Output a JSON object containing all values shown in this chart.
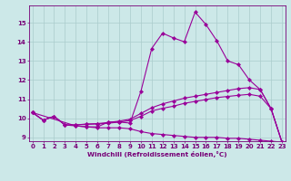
{
  "xlabel": "Windchill (Refroidissement éolien,°C)",
  "x": [
    0,
    1,
    2,
    3,
    4,
    5,
    6,
    7,
    8,
    9,
    10,
    11,
    12,
    13,
    14,
    15,
    16,
    17,
    18,
    19,
    20,
    21,
    22,
    23
  ],
  "line1": [
    10.3,
    9.9,
    10.1,
    9.65,
    9.6,
    9.55,
    9.55,
    9.8,
    9.8,
    9.75,
    11.4,
    13.65,
    14.45,
    14.2,
    14.0,
    15.55,
    14.9,
    14.05,
    13.0,
    12.8,
    12.0,
    11.5,
    10.5,
    8.75
  ],
  "line2": [
    10.3,
    9.9,
    10.1,
    9.65,
    9.65,
    9.7,
    9.72,
    9.78,
    9.85,
    9.95,
    10.25,
    10.55,
    10.75,
    10.9,
    11.05,
    11.15,
    11.25,
    11.35,
    11.45,
    11.55,
    11.6,
    11.5,
    10.5,
    8.75
  ],
  "line3": [
    10.3,
    9.9,
    10.1,
    9.65,
    9.65,
    9.68,
    9.7,
    9.74,
    9.8,
    9.88,
    10.1,
    10.38,
    10.52,
    10.63,
    10.78,
    10.88,
    10.98,
    11.08,
    11.14,
    11.2,
    11.25,
    11.15,
    10.5,
    8.75
  ],
  "line4_x": [
    0,
    4,
    5,
    6,
    7,
    8,
    9,
    10,
    11,
    12,
    13,
    14,
    15,
    16,
    17,
    18,
    19,
    20,
    21,
    22,
    23
  ],
  "line4_y": [
    10.3,
    9.6,
    9.55,
    9.5,
    9.5,
    9.5,
    9.45,
    9.3,
    9.2,
    9.15,
    9.1,
    9.05,
    9.0,
    9.0,
    9.0,
    8.95,
    8.95,
    8.9,
    8.85,
    8.8,
    8.75
  ],
  "bg_color": "#cce8e8",
  "grid_color": "#aacccc",
  "line_color": "#990099",
  "ylim": [
    8.8,
    15.9
  ],
  "xlim": [
    -0.3,
    23.3
  ],
  "yticks": [
    9,
    10,
    11,
    12,
    13,
    14,
    15
  ],
  "xticks": [
    0,
    1,
    2,
    3,
    4,
    5,
    6,
    7,
    8,
    9,
    10,
    11,
    12,
    13,
    14,
    15,
    16,
    17,
    18,
    19,
    20,
    21,
    22,
    23
  ],
  "marker_size": 2.2,
  "linewidth": 0.8
}
